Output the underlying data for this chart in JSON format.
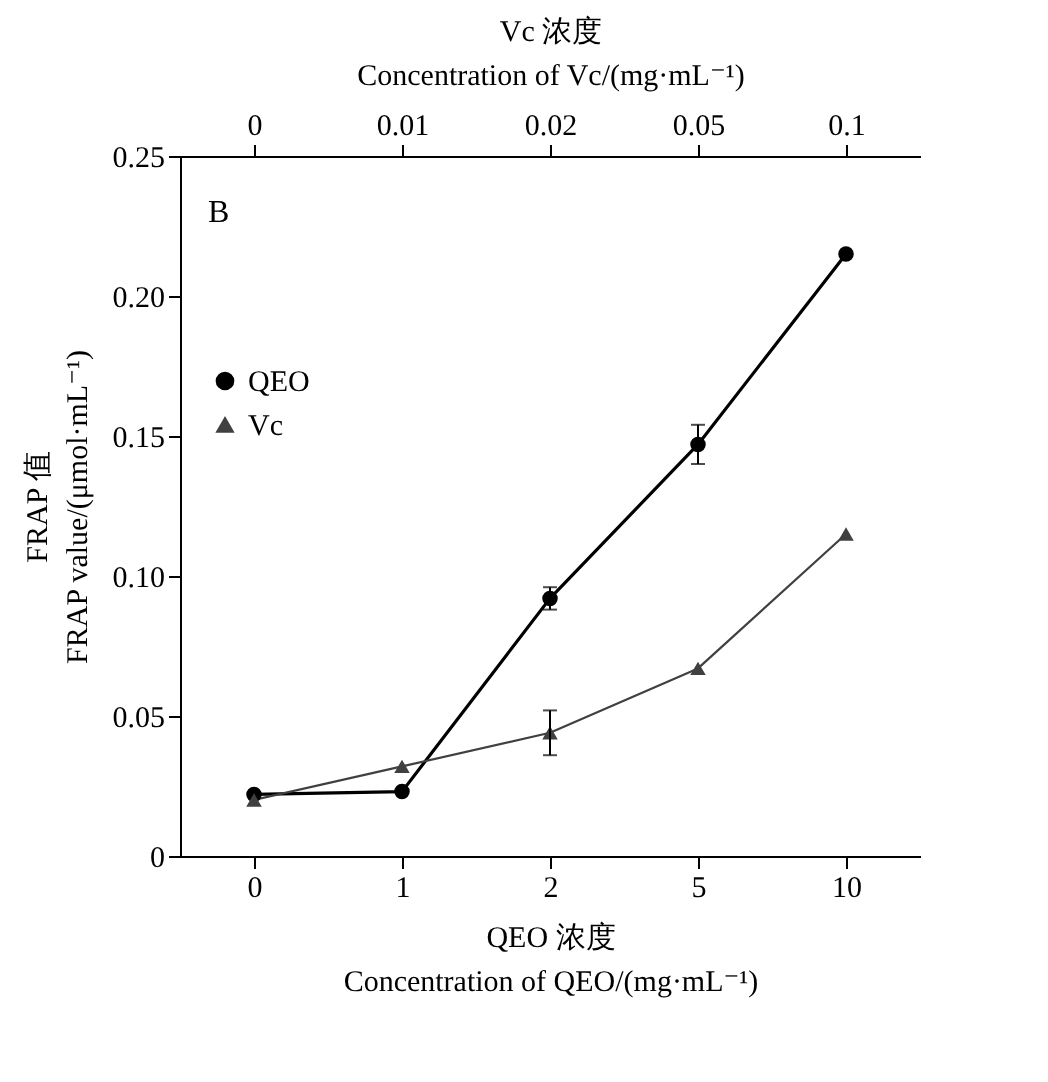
{
  "chart_data": {
    "type": "line",
    "xlabel": "QEO 浓度\nConcentration of QEO/(mg·mL⁻¹)",
    "x2label": "Vc 浓度\nConcentration of Vc/(mg·mL⁻¹)",
    "ylabel": "FRAP 值\nFRAP value/(μmol·mL⁻¹)",
    "categories": [
      "0",
      "1",
      "2",
      "5",
      "10"
    ],
    "ylim": [
      0,
      0.25
    ],
    "yticks": [
      0,
      0.05,
      {
        "value": 0.1,
        "label": "0.10"
      },
      {
        "value": 0.15,
        "label": "0.15"
      },
      {
        "value": 0.2,
        "label": "0.20"
      },
      0.25
    ],
    "series": [
      {
        "name": "QEO",
        "color": "#000000",
        "marker": "circle",
        "values": [
          0.022,
          0.023,
          0.092,
          0.147,
          0.215
        ],
        "errors": [
          null,
          null,
          0.004,
          0.007,
          null
        ]
      },
      {
        "name": "Vc",
        "color": "#404040",
        "marker": "triangle",
        "values": [
          0.02,
          0.032,
          0.044,
          0.067,
          0.115
        ],
        "errors": [
          null,
          null,
          0.008,
          null,
          null
        ]
      }
    ],
    "annotations": [
      "B",
      "0",
      "0.01",
      "0.02",
      "0.05",
      "0.1"
    ],
    "legend": "top left",
    "grid": false
  }
}
